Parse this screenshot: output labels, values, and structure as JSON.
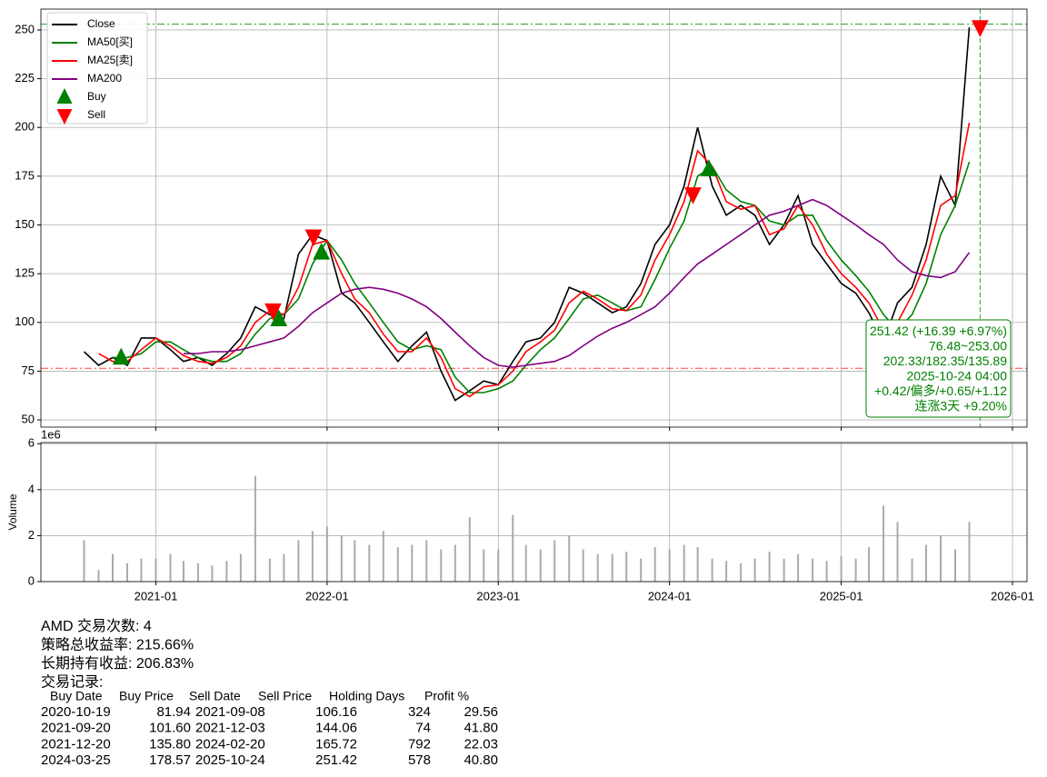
{
  "chart_data": [
    {
      "type": "line",
      "x": [
        "2020-08",
        "2020-09",
        "2020-10",
        "2020-11",
        "2020-12",
        "2021-01",
        "2021-02",
        "2021-03",
        "2021-04",
        "2021-05",
        "2021-06",
        "2021-07",
        "2021-08",
        "2021-09",
        "2021-10",
        "2021-11",
        "2021-12",
        "2022-01",
        "2022-02",
        "2022-03",
        "2022-04",
        "2022-05",
        "2022-06",
        "2022-07",
        "2022-08",
        "2022-09",
        "2022-10",
        "2022-11",
        "2022-12",
        "2023-01",
        "2023-02",
        "2023-03",
        "2023-04",
        "2023-05",
        "2023-06",
        "2023-07",
        "2023-08",
        "2023-09",
        "2023-10",
        "2023-11",
        "2023-12",
        "2024-01",
        "2024-02",
        "2024-03",
        "2024-04",
        "2024-05",
        "2024-06",
        "2024-07",
        "2024-08",
        "2024-09",
        "2024-10",
        "2024-11",
        "2024-12",
        "2025-01",
        "2025-02",
        "2025-03",
        "2025-04",
        "2025-05",
        "2025-06",
        "2025-07",
        "2025-08",
        "2025-09",
        "2025-10"
      ],
      "series": [
        {
          "name": "Close",
          "color": "#000000",
          "values": [
            85,
            78,
            82,
            78,
            92,
            92,
            86,
            80,
            82,
            78,
            84,
            92,
            108,
            104,
            102,
            135,
            145,
            142,
            115,
            110,
            100,
            90,
            80,
            88,
            95,
            75,
            60,
            65,
            70,
            68,
            80,
            90,
            92,
            100,
            118,
            115,
            110,
            105,
            108,
            120,
            140,
            150,
            170,
            200,
            170,
            155,
            160,
            155,
            140,
            150,
            165,
            140,
            130,
            120,
            115,
            105,
            90,
            110,
            118,
            140,
            175,
            160,
            251.42
          ]
        },
        {
          "name": "MA50[买]",
          "color": "#008000",
          "values": [
            null,
            null,
            82,
            82,
            84,
            90,
            90,
            86,
            82,
            80,
            80,
            84,
            94,
            102,
            104,
            112,
            130,
            142,
            132,
            120,
            110,
            100,
            90,
            86,
            88,
            86,
            72,
            64,
            64,
            66,
            70,
            78,
            86,
            92,
            102,
            112,
            114,
            110,
            106,
            108,
            122,
            138,
            152,
            175,
            180,
            168,
            162,
            160,
            152,
            150,
            155,
            155,
            142,
            132,
            124,
            116,
            104,
            96,
            104,
            120,
            145,
            160,
            182.35
          ]
        },
        {
          "name": "MA25[卖]",
          "color": "#ff0000",
          "values": [
            null,
            84,
            80,
            80,
            86,
            92,
            88,
            83,
            80,
            79,
            82,
            88,
            100,
            106,
            104,
            118,
            140,
            142,
            125,
            112,
            105,
            94,
            85,
            85,
            92,
            82,
            66,
            62,
            67,
            68,
            75,
            85,
            90,
            96,
            110,
            116,
            112,
            107,
            106,
            114,
            132,
            145,
            162,
            188,
            180,
            162,
            158,
            160,
            145,
            148,
            160,
            150,
            135,
            125,
            118,
            110,
            96,
            100,
            114,
            132,
            160,
            165,
            202.33
          ]
        },
        {
          "name": "MA200",
          "color": "#800080",
          "values": [
            null,
            null,
            null,
            null,
            null,
            null,
            null,
            84,
            84,
            85,
            85,
            86,
            88,
            90,
            92,
            98,
            105,
            110,
            115,
            117,
            118,
            117,
            115,
            112,
            108,
            102,
            95,
            88,
            82,
            78,
            77,
            78,
            79,
            80,
            83,
            88,
            93,
            97,
            100,
            104,
            108,
            115,
            123,
            130,
            135,
            140,
            145,
            150,
            155,
            157,
            160,
            163,
            160,
            155,
            150,
            145,
            140,
            132,
            126,
            124,
            123,
            126,
            135.89
          ]
        }
      ],
      "markers": [
        {
          "name": "Buy",
          "color": "#008000",
          "shape": "up",
          "x": [
            "2020-10-19",
            "2021-09-20",
            "2021-12-20",
            "2024-03-25"
          ],
          "values": [
            81.94,
            101.6,
            135.8,
            178.57
          ]
        },
        {
          "name": "Sell",
          "color": "#ff0000",
          "shape": "down",
          "x": [
            "2021-09-08",
            "2021-12-03",
            "2024-02-20",
            "2025-10-24"
          ],
          "values": [
            106.16,
            144.06,
            165.72,
            251.42
          ]
        }
      ],
      "hlines": [
        {
          "value": 253,
          "color": "#2ca02c"
        },
        {
          "value": 76.48,
          "color": "#ff4444"
        }
      ],
      "vline": {
        "x": "2025-10-24",
        "color": "#2ca02c"
      },
      "annotation": {
        "color": "#008000",
        "lines": [
          "251.42 (+16.39 +6.97%)",
          "76.48~253.00",
          "202.33/182.35/135.89",
          "2025-10-24 04:00",
          "+0.42/偏多/+0.65/+1.12",
          "连涨3天 +9.20%"
        ]
      },
      "xlim": [
        "2020-05",
        "2026-02"
      ],
      "xticks": [
        "2021-01",
        "2022-01",
        "2023-01",
        "2024-01",
        "2025-01",
        "2026-01"
      ],
      "ylim": [
        46.3,
        260.7
      ],
      "yticks": [
        50,
        75,
        100,
        125,
        150,
        175,
        200,
        225,
        250
      ],
      "grid": true,
      "legend": "upper left"
    },
    {
      "type": "bar",
      "x": [
        "2020-08",
        "2020-09",
        "2020-10",
        "2020-11",
        "2020-12",
        "2021-01",
        "2021-02",
        "2021-03",
        "2021-04",
        "2021-05",
        "2021-06",
        "2021-07",
        "2021-08",
        "2021-09",
        "2021-10",
        "2021-11",
        "2021-12",
        "2022-01",
        "2022-02",
        "2022-03",
        "2022-04",
        "2022-05",
        "2022-06",
        "2022-07",
        "2022-08",
        "2022-09",
        "2022-10",
        "2022-11",
        "2022-12",
        "2023-01",
        "2023-02",
        "2023-03",
        "2023-04",
        "2023-05",
        "2023-06",
        "2023-07",
        "2023-08",
        "2023-09",
        "2023-10",
        "2023-11",
        "2023-12",
        "2024-01",
        "2024-02",
        "2024-03",
        "2024-04",
        "2024-05",
        "2024-06",
        "2024-07",
        "2024-08",
        "2024-09",
        "2024-10",
        "2024-11",
        "2024-12",
        "2025-01",
        "2025-02",
        "2025-03",
        "2025-04",
        "2025-05",
        "2025-06",
        "2025-07",
        "2025-08",
        "2025-09",
        "2025-10"
      ],
      "values": [
        1.8,
        0.5,
        1.2,
        0.8,
        1.0,
        1.0,
        1.2,
        0.9,
        0.8,
        0.7,
        0.9,
        1.2,
        4.6,
        1.0,
        1.2,
        1.8,
        2.2,
        2.4,
        2.0,
        1.8,
        1.6,
        2.2,
        1.5,
        1.6,
        1.8,
        1.4,
        1.6,
        2.8,
        1.4,
        1.4,
        2.9,
        1.6,
        1.4,
        1.8,
        2.0,
        1.4,
        1.2,
        1.2,
        1.3,
        1.0,
        1.5,
        1.4,
        1.6,
        1.5,
        1.0,
        0.9,
        0.8,
        1.0,
        1.3,
        1.0,
        1.2,
        1.0,
        0.9,
        1.1,
        1.0,
        1.5,
        3.3,
        2.6,
        1.0,
        1.6,
        2.0,
        1.4,
        2.6
      ],
      "color": "#aaaaaa",
      "ylabel": "Volume",
      "offset_label": "1e6",
      "xlim": [
        "2020-05",
        "2026-02"
      ],
      "xticks": [
        "2021-01",
        "2022-01",
        "2023-01",
        "2024-01",
        "2025-01",
        "2026-01"
      ],
      "ylim": [
        0,
        6.05
      ],
      "yticks": [
        0,
        2,
        4,
        6
      ],
      "grid": true
    }
  ],
  "report": {
    "lines": [
      "AMD 交易次数: 4",
      "策略总收益率: 215.66%",
      "长期持有收益: 206.83%",
      "交易记录:"
    ],
    "table": {
      "columns": [
        "Buy Date",
        "Buy Price",
        "Sell Date",
        "Sell Price",
        "Holding Days",
        "Profit %"
      ],
      "rows": [
        [
          "2020-10-19",
          "81.94",
          "2021-09-08",
          "106.16",
          "324",
          "29.56"
        ],
        [
          "2021-09-20",
          "101.60",
          "2021-12-03",
          "144.06",
          "74",
          "41.80"
        ],
        [
          "2021-12-20",
          "135.80",
          "2024-02-20",
          "165.72",
          "792",
          "22.03"
        ],
        [
          "2024-03-25",
          "178.57",
          "2025-10-24",
          "251.42",
          "578",
          "40.80"
        ]
      ]
    }
  }
}
